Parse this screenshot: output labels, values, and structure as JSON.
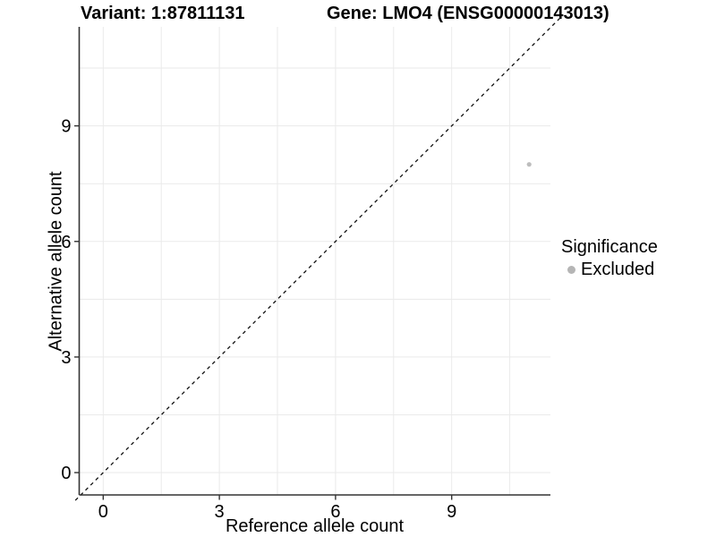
{
  "chart_data": {
    "type": "scatter",
    "title_left": "Variant: 1:87811131",
    "title_right": "Gene: LMO4 (ENSG00000143013)",
    "xlabel": "Reference allele count",
    "ylabel": "Alternative allele count",
    "xticks": [
      0,
      3,
      6,
      9
    ],
    "yticks": [
      0,
      3,
      6,
      9
    ],
    "grid_breaks": [
      0,
      1.5,
      3,
      4.5,
      6,
      7.5,
      9,
      10.5
    ],
    "xlim": [
      -0.62,
      11.55
    ],
    "ylim": [
      -0.58,
      11.57
    ],
    "points": [
      {
        "x": 11,
        "y": 8,
        "series": "Excluded"
      }
    ],
    "point_radius": 2.6,
    "reference_line": {
      "slope": 1,
      "intercept": 0,
      "style": "dashed",
      "draw_range": [
        -0.72,
        11.85
      ]
    },
    "legend": {
      "title": "Significance",
      "position": "right",
      "items": [
        {
          "label": "Excluded",
          "color": "#b5b5b5"
        }
      ]
    },
    "colors": {
      "point": "#bdbdbd",
      "grid": "#eaeaea",
      "axis": "#333333",
      "reference_line": "#111111",
      "text": "#000000"
    }
  }
}
